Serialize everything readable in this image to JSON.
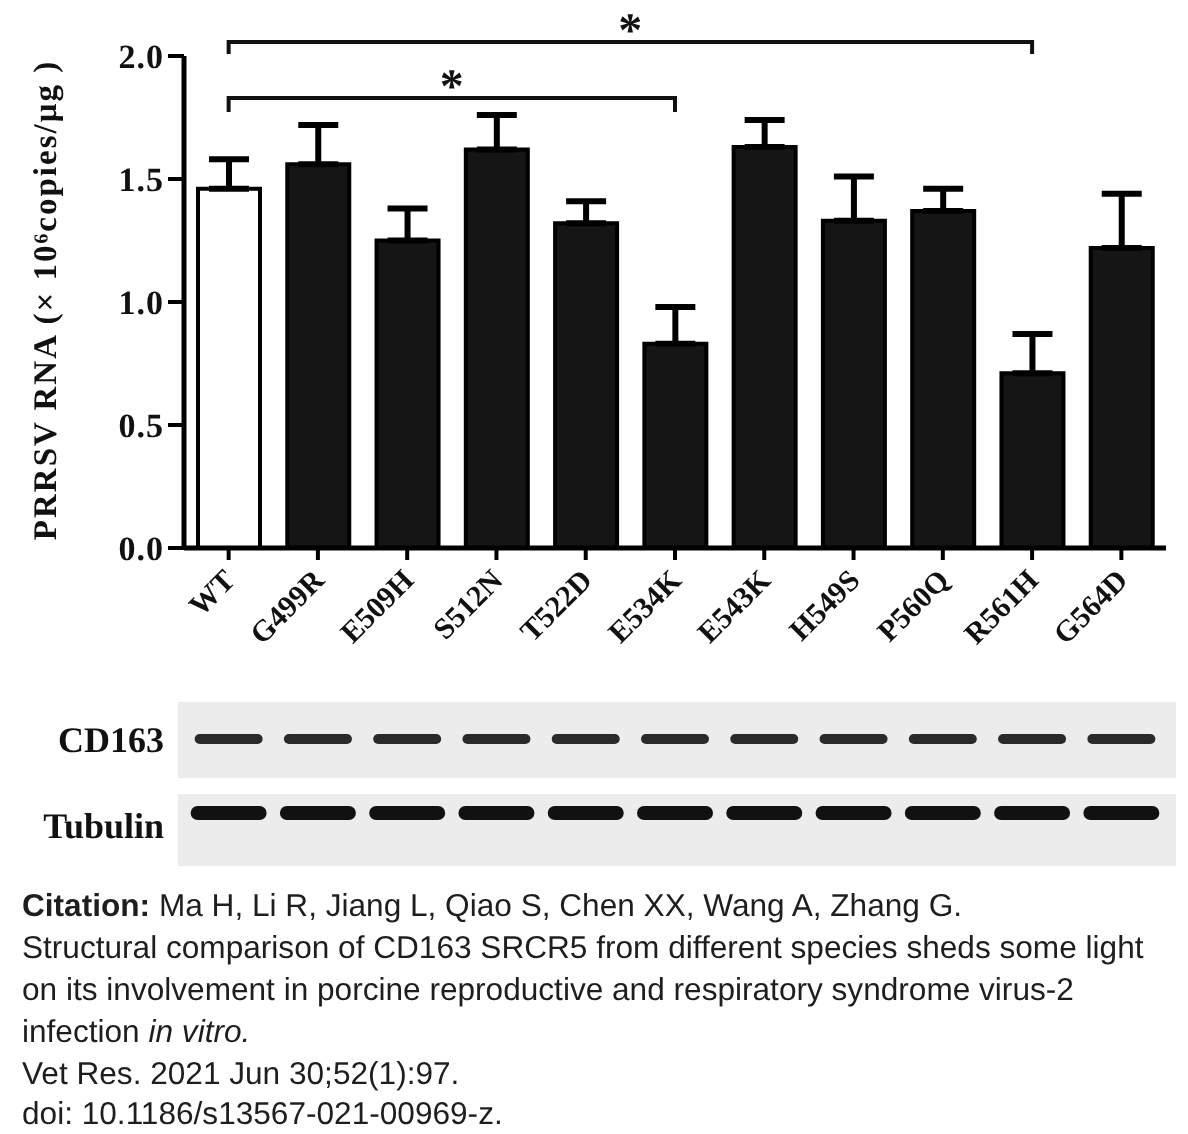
{
  "chart_data": {
    "type": "bar",
    "ylabel": "PRRSV RNA (× 10⁶copies/μg )",
    "categories": [
      "WT",
      "G499R",
      "E509H",
      "S512N",
      "T522D",
      "E534K",
      "E543K",
      "H549S",
      "P560Q",
      "R561H",
      "G564D"
    ],
    "values": [
      1.46,
      1.56,
      1.25,
      1.62,
      1.32,
      0.83,
      1.63,
      1.33,
      1.37,
      0.71,
      1.22
    ],
    "colors": [
      "#ffffff",
      "#151515",
      "#151515",
      "#151515",
      "#151515",
      "#151515",
      "#151515",
      "#151515",
      "#151515",
      "#151515",
      "#151515"
    ],
    "errors": [
      [
        1.46,
        1.58
      ],
      [
        1.56,
        1.72
      ],
      [
        1.25,
        1.38
      ],
      [
        1.62,
        1.76
      ],
      [
        1.32,
        1.41
      ],
      [
        0.83,
        0.98
      ],
      [
        1.63,
        1.74
      ],
      [
        1.33,
        1.51
      ],
      [
        1.37,
        1.46
      ],
      [
        0.71,
        0.87
      ],
      [
        1.22,
        1.44
      ]
    ],
    "ylim": [
      0,
      2
    ],
    "yticks": [
      {
        "value": 0,
        "label": "0.0"
      },
      {
        "value": 0.5,
        "label": "0.5"
      },
      {
        "value": 1,
        "label": "1.0"
      },
      {
        "value": 1.5,
        "label": "1.5"
      },
      {
        "value": 2,
        "label": "2.0"
      }
    ],
    "annotations": [
      "*",
      "*",
      "CD163",
      "Tubulin",
      "Citation:",
      "Ma H, Li R, Jiang L, Qiao S, Chen XX, Wang A, Zhang G.",
      "Structural comparison of CD163 SRCR5 from different species sheds some light",
      "on its involvement in porcine reproductive and respiratory syndrome virus-2",
      "infection",
      "in vitro.",
      "Vet Res. 2021 Jun 30;52(1):97.",
      "doi: 10.1186/s13567-021-00969-z."
    ]
  }
}
